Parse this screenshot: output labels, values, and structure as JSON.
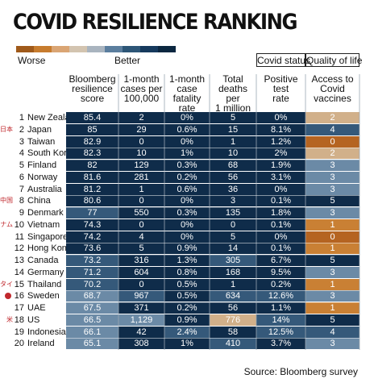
{
  "title": "COVID RESILIENCE RANKING",
  "scale": {
    "worse_label": "Worse",
    "better_label": "Better",
    "colors": [
      "#a05a1a",
      "#c77c2e",
      "#daa574",
      "#d3c4b0",
      "#a9b4bf",
      "#5b7e9e",
      "#2d5677",
      "#163a5d",
      "#0b2740"
    ]
  },
  "groups": {
    "covid_status": "Covid status",
    "quality_of_life": "Quality of life"
  },
  "source": "Source: Bloomberg survey",
  "chart_data": {
    "type": "table",
    "columns": [
      {
        "label": "Bloomberg resilience score"
      },
      {
        "label": "1-month cases per 100,000"
      },
      {
        "label": "1-month case fatality rate"
      },
      {
        "label": "Total deaths per 1 million"
      },
      {
        "label": "Positive test rate"
      },
      {
        "label": "Access to Covid vaccines"
      }
    ],
    "rows": [
      {
        "rank": "1",
        "country": "New Zealand",
        "flag": "",
        "values": [
          "85.4",
          "2",
          "0%",
          "5",
          "0%",
          "2"
        ],
        "colors": [
          "#0f2c4a",
          "#0f2c4a",
          "#0f2c4a",
          "#0f2c4a",
          "#0f2c4a",
          "#d1b08a"
        ]
      },
      {
        "rank": "2",
        "country": "Japan",
        "flag": "日本",
        "values": [
          "85",
          "29",
          "0.6%",
          "15",
          "8.1%",
          "4"
        ],
        "colors": [
          "#0f2c4a",
          "#0f2c4a",
          "#0f2c4a",
          "#0f2c4a",
          "#0f2c4a",
          "#35597a"
        ]
      },
      {
        "rank": "3",
        "country": "Taiwan",
        "flag": "",
        "values": [
          "82.9",
          "0",
          "0%",
          "1",
          "1.2%",
          "0"
        ],
        "colors": [
          "#0f2c4a",
          "#0f2c4a",
          "#0f2c4a",
          "#0f2c4a",
          "#0f2c4a",
          "#b56421"
        ]
      },
      {
        "rank": "4",
        "country": "South Korea",
        "flag": "",
        "values": [
          "82.3",
          "10",
          "1%",
          "10",
          "2%",
          "2"
        ],
        "colors": [
          "#0f2c4a",
          "#0f2c4a",
          "#0f2c4a",
          "#0f2c4a",
          "#0f2c4a",
          "#d1b08a"
        ]
      },
      {
        "rank": "5",
        "country": "Finland",
        "flag": "",
        "values": [
          "82",
          "129",
          "0.3%",
          "68",
          "1.9%",
          "3"
        ],
        "colors": [
          "#0f2c4a",
          "#0f2c4a",
          "#0f2c4a",
          "#0f2c4a",
          "#0f2c4a",
          "#6b8aa6"
        ]
      },
      {
        "rank": "6",
        "country": "Norway",
        "flag": "",
        "values": [
          "81.6",
          "281",
          "0.2%",
          "56",
          "3.1%",
          "3"
        ],
        "colors": [
          "#0f2c4a",
          "#0f2c4a",
          "#0f2c4a",
          "#0f2c4a",
          "#0f2c4a",
          "#6b8aa6"
        ]
      },
      {
        "rank": "7",
        "country": "Australia",
        "flag": "",
        "values": [
          "81.2",
          "1",
          "0.6%",
          "36",
          "0%",
          "3"
        ],
        "colors": [
          "#0f2c4a",
          "#0f2c4a",
          "#0f2c4a",
          "#0f2c4a",
          "#0f2c4a",
          "#6b8aa6"
        ]
      },
      {
        "rank": "8",
        "country": "China",
        "flag": "中国",
        "values": [
          "80.6",
          "0",
          "0%",
          "3",
          "0.1%",
          "5"
        ],
        "colors": [
          "#0f2c4a",
          "#0f2c4a",
          "#0f2c4a",
          "#0f2c4a",
          "#0f2c4a",
          "#0f2c4a"
        ]
      },
      {
        "rank": "9",
        "country": "Denmark",
        "flag": "",
        "values": [
          "77",
          "550",
          "0.3%",
          "135",
          "1.8%",
          "3"
        ],
        "colors": [
          "#35597a",
          "#0f2c4a",
          "#0f2c4a",
          "#0f2c4a",
          "#0f2c4a",
          "#6b8aa6"
        ]
      },
      {
        "rank": "10",
        "country": "Vietnam",
        "flag": "ベトナム",
        "values": [
          "74.3",
          "0",
          "0%",
          "0",
          "0.1%",
          "1"
        ],
        "colors": [
          "#0f2c4a",
          "#0f2c4a",
          "#0f2c4a",
          "#0f2c4a",
          "#0f2c4a",
          "#c98034"
        ]
      },
      {
        "rank": "11",
        "country": "Singapore",
        "flag": "",
        "values": [
          "74.2",
          "4",
          "0%",
          "5",
          "0%",
          "0"
        ],
        "colors": [
          "#0f2c4a",
          "#0f2c4a",
          "#0f2c4a",
          "#0f2c4a",
          "#0f2c4a",
          "#b56421"
        ]
      },
      {
        "rank": "12",
        "country": "Hong Kong",
        "flag": "",
        "values": [
          "73.6",
          "5",
          "0.9%",
          "14",
          "0.1%",
          "1"
        ],
        "colors": [
          "#0f2c4a",
          "#0f2c4a",
          "#0f2c4a",
          "#0f2c4a",
          "#0f2c4a",
          "#c98034"
        ]
      },
      {
        "rank": "13",
        "country": "Canada",
        "flag": "",
        "values": [
          "73.2",
          "316",
          "1.3%",
          "305",
          "6.7%",
          "5"
        ],
        "colors": [
          "#35597a",
          "#0f2c4a",
          "#0f2c4a",
          "#35597a",
          "#0f2c4a",
          "#0f2c4a"
        ]
      },
      {
        "rank": "14",
        "country": "Germany",
        "flag": "",
        "values": [
          "71.2",
          "604",
          "0.8%",
          "168",
          "9.5%",
          "3"
        ],
        "colors": [
          "#35597a",
          "#0f2c4a",
          "#0f2c4a",
          "#0f2c4a",
          "#0f2c4a",
          "#6b8aa6"
        ]
      },
      {
        "rank": "15",
        "country": "Thailand",
        "flag": "タイ",
        "values": [
          "70.2",
          "0",
          "0.5%",
          "1",
          "0.2%",
          "1"
        ],
        "colors": [
          "#35597a",
          "#0f2c4a",
          "#0f2c4a",
          "#0f2c4a",
          "#0f2c4a",
          "#c98034"
        ]
      },
      {
        "rank": "16",
        "country": "Sweden",
        "flag": "dot",
        "values": [
          "68.7",
          "967",
          "0.5%",
          "634",
          "12.6%",
          "3"
        ],
        "colors": [
          "#6b8aa6",
          "#35597a",
          "#0f2c4a",
          "#35597a",
          "#35597a",
          "#6b8aa6"
        ]
      },
      {
        "rank": "17",
        "country": "UAE",
        "flag": "",
        "values": [
          "67.5",
          "371",
          "0.2%",
          "56",
          "1.1%",
          "1"
        ],
        "colors": [
          "#6b8aa6",
          "#0f2c4a",
          "#0f2c4a",
          "#0f2c4a",
          "#0f2c4a",
          "#c98034"
        ]
      },
      {
        "rank": "18",
        "country": "US",
        "flag": "米",
        "values": [
          "66.5",
          "1,129",
          "0.9%",
          "776",
          "14%",
          "5"
        ],
        "colors": [
          "#6b8aa6",
          "#6b8aa6",
          "#0f2c4a",
          "#d1b08a",
          "#35597a",
          "#0f2c4a"
        ]
      },
      {
        "rank": "19",
        "country": "Indonesia",
        "flag": "",
        "values": [
          "66.1",
          "42",
          "2.4%",
          "58",
          "12.5%",
          "4"
        ],
        "colors": [
          "#6b8aa6",
          "#0f2c4a",
          "#35597a",
          "#0f2c4a",
          "#35597a",
          "#35597a"
        ]
      },
      {
        "rank": "20",
        "country": "Ireland",
        "flag": "",
        "values": [
          "65.1",
          "308",
          "1%",
          "410",
          "3.7%",
          "3"
        ],
        "colors": [
          "#6b8aa6",
          "#0f2c4a",
          "#0f2c4a",
          "#35597a",
          "#0f2c4a",
          "#6b8aa6"
        ]
      }
    ]
  }
}
